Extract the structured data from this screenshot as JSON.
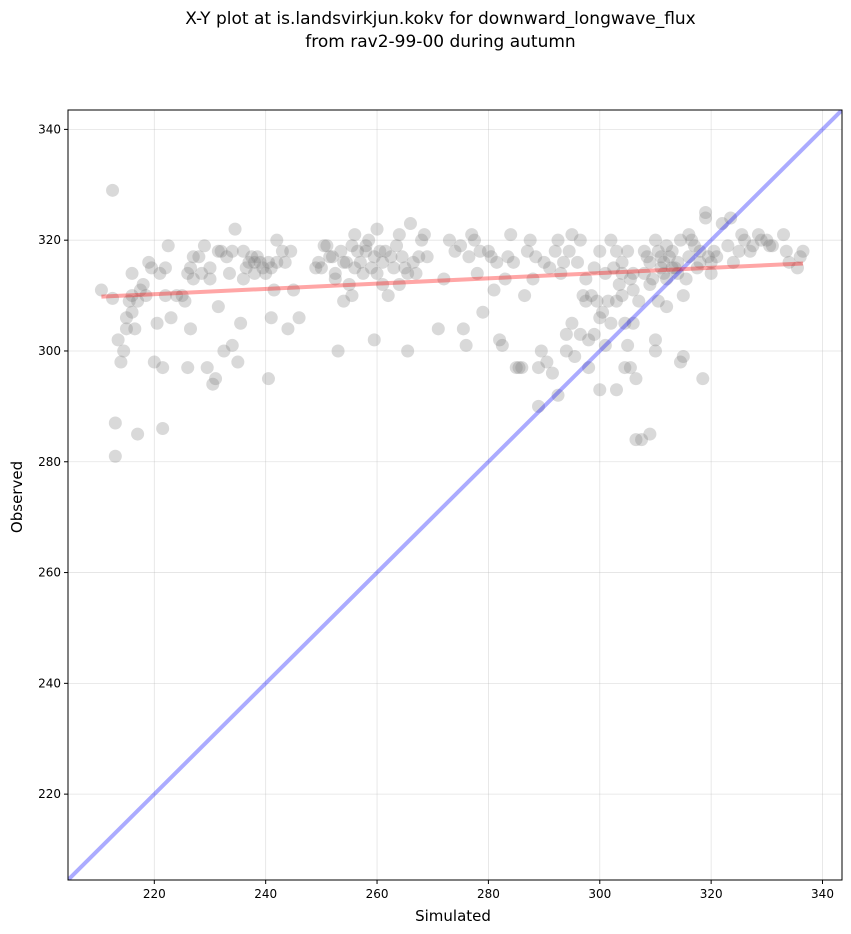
{
  "chart_data": {
    "type": "scatter",
    "title_line1": "X-Y plot at is.landsvirkjun.kokv for downward_longwave_flux",
    "title_line2": "from rav2-99-00 during autumn",
    "xlabel": "Simulated",
    "ylabel": "Observed",
    "xlim": [
      204.5,
      343.5
    ],
    "ylim": [
      204.5,
      343.5
    ],
    "x_ticks": [
      220,
      240,
      260,
      280,
      300,
      320,
      340
    ],
    "y_ticks": [
      220,
      240,
      260,
      280,
      300,
      320,
      340
    ],
    "grid": true,
    "point_color": "#808080",
    "fit_line_color": "#ff0000",
    "identity_line_color": "#0000ff",
    "fit_line": {
      "x": [
        210.5,
        336.5
      ],
      "y": [
        309.8,
        315.8
      ]
    },
    "identity_line": {
      "x": [
        204.5,
        343.5
      ],
      "y": [
        204.5,
        343.5
      ]
    },
    "points": [
      [
        210.5,
        311
      ],
      [
        212.5,
        329
      ],
      [
        213,
        287
      ],
      [
        213,
        281
      ],
      [
        212.5,
        309.5
      ],
      [
        213.5,
        302
      ],
      [
        214,
        298
      ],
      [
        214.5,
        300
      ],
      [
        215,
        306
      ],
      [
        215,
        304
      ],
      [
        215.5,
        309
      ],
      [
        216,
        314
      ],
      [
        216,
        310
      ],
      [
        216,
        307
      ],
      [
        216.5,
        304
      ],
      [
        217,
        309
      ],
      [
        217,
        285
      ],
      [
        217.5,
        311
      ],
      [
        218,
        312
      ],
      [
        218.5,
        310
      ],
      [
        219,
        316
      ],
      [
        219.5,
        315
      ],
      [
        220,
        298
      ],
      [
        220.5,
        305
      ],
      [
        221,
        314
      ],
      [
        221.5,
        297
      ],
      [
        221.5,
        286
      ],
      [
        222,
        310
      ],
      [
        222,
        315
      ],
      [
        222.5,
        319
      ],
      [
        223,
        306
      ],
      [
        224,
        310
      ],
      [
        225,
        310
      ],
      [
        225.5,
        309
      ],
      [
        226,
        314
      ],
      [
        226,
        297
      ],
      [
        226.5,
        315
      ],
      [
        227,
        317
      ],
      [
        227,
        313
      ],
      [
        226.5,
        304
      ],
      [
        228,
        317
      ],
      [
        228.5,
        314
      ],
      [
        229,
        319
      ],
      [
        229.5,
        297
      ],
      [
        230,
        313
      ],
      [
        230,
        315
      ],
      [
        230.5,
        294
      ],
      [
        231,
        295
      ],
      [
        231.5,
        318
      ],
      [
        231.5,
        308
      ],
      [
        232,
        318
      ],
      [
        232.5,
        300
      ],
      [
        233,
        317
      ],
      [
        233.5,
        314
      ],
      [
        234,
        301
      ],
      [
        234,
        318
      ],
      [
        234.5,
        322
      ],
      [
        235,
        298
      ],
      [
        235.5,
        305
      ],
      [
        236,
        313
      ],
      [
        236,
        318
      ],
      [
        236.5,
        315
      ],
      [
        237,
        316
      ],
      [
        237.5,
        317
      ],
      [
        238,
        316
      ],
      [
        238,
        314
      ],
      [
        238.5,
        317
      ],
      [
        239,
        316
      ],
      [
        239.5,
        315
      ],
      [
        240,
        314
      ],
      [
        240.5,
        295
      ],
      [
        240.5,
        316
      ],
      [
        241,
        315
      ],
      [
        241,
        306
      ],
      [
        241.5,
        311
      ],
      [
        242,
        320
      ],
      [
        242,
        316
      ],
      [
        243,
        318
      ],
      [
        243.5,
        316
      ],
      [
        244,
        304
      ],
      [
        244.5,
        318
      ],
      [
        245,
        311
      ],
      [
        246,
        306
      ],
      [
        249,
        315
      ],
      [
        249.5,
        316
      ],
      [
        250,
        315
      ],
      [
        250.5,
        319
      ],
      [
        251,
        319
      ],
      [
        251.5,
        317
      ],
      [
        252,
        317
      ],
      [
        252.5,
        314
      ],
      [
        252.5,
        313
      ],
      [
        253,
        300
      ],
      [
        253.5,
        318
      ],
      [
        254,
        309
      ],
      [
        254,
        316
      ],
      [
        254.5,
        316
      ],
      [
        255,
        312
      ],
      [
        255.5,
        310
      ],
      [
        255.5,
        319
      ],
      [
        256,
        321
      ],
      [
        256,
        315
      ],
      [
        256.5,
        318
      ],
      [
        257,
        316
      ],
      [
        257.5,
        314
      ],
      [
        258,
        319
      ],
      [
        258,
        318
      ],
      [
        258.5,
        320
      ],
      [
        259,
        315
      ],
      [
        259.5,
        317
      ],
      [
        259.5,
        302
      ],
      [
        260,
        322
      ],
      [
        260,
        314
      ],
      [
        260.5,
        318
      ],
      [
        261,
        312
      ],
      [
        261,
        316
      ],
      [
        261.5,
        318
      ],
      [
        262,
        310
      ],
      [
        262.5,
        317
      ],
      [
        263,
        315
      ],
      [
        263.5,
        319
      ],
      [
        264,
        312
      ],
      [
        264,
        321
      ],
      [
        264.5,
        317
      ],
      [
        265,
        315
      ],
      [
        265.5,
        314
      ],
      [
        265.5,
        300
      ],
      [
        266,
        323
      ],
      [
        266.5,
        316
      ],
      [
        267,
        314
      ],
      [
        267.5,
        317
      ],
      [
        268,
        320
      ],
      [
        268.5,
        321
      ],
      [
        269,
        317
      ],
      [
        271,
        304
      ],
      [
        272,
        313
      ],
      [
        273,
        320
      ],
      [
        274,
        318
      ],
      [
        275,
        319
      ],
      [
        275.5,
        304
      ],
      [
        276,
        301
      ],
      [
        276.5,
        317
      ],
      [
        277,
        321
      ],
      [
        277.5,
        320
      ],
      [
        278,
        314
      ],
      [
        278.5,
        318
      ],
      [
        279,
        307
      ],
      [
        280,
        318
      ],
      [
        280.5,
        317
      ],
      [
        281,
        311
      ],
      [
        281.5,
        316
      ],
      [
        282,
        302
      ],
      [
        282.5,
        301
      ],
      [
        283,
        313
      ],
      [
        283.5,
        317
      ],
      [
        284,
        321
      ],
      [
        284.5,
        316
      ],
      [
        285,
        297
      ],
      [
        285.5,
        297
      ],
      [
        286,
        297
      ],
      [
        286.5,
        310
      ],
      [
        287,
        318
      ],
      [
        287.5,
        320
      ],
      [
        288,
        313
      ],
      [
        288.5,
        317
      ],
      [
        289,
        297
      ],
      [
        289,
        290
      ],
      [
        289.5,
        300
      ],
      [
        290,
        316
      ],
      [
        290.5,
        298
      ],
      [
        291,
        315
      ],
      [
        291.5,
        296
      ],
      [
        292,
        318
      ],
      [
        292.5,
        320
      ],
      [
        292.5,
        292
      ],
      [
        293,
        314
      ],
      [
        293.5,
        316
      ],
      [
        294,
        300
      ],
      [
        294,
        303
      ],
      [
        294.5,
        318
      ],
      [
        295,
        305
      ],
      [
        295,
        321
      ],
      [
        295.5,
        299
      ],
      [
        296,
        316
      ],
      [
        296.5,
        320
      ],
      [
        296.5,
        303
      ],
      [
        297,
        310
      ],
      [
        297.5,
        313
      ],
      [
        297.5,
        309
      ],
      [
        298,
        297
      ],
      [
        298,
        302
      ],
      [
        298.5,
        310
      ],
      [
        299,
        315
      ],
      [
        299,
        303
      ],
      [
        299.5,
        309
      ],
      [
        300,
        318
      ],
      [
        300,
        306
      ],
      [
        300,
        293
      ],
      [
        300.5,
        307
      ],
      [
        301,
        314
      ],
      [
        301,
        301
      ],
      [
        301.5,
        309
      ],
      [
        302,
        305
      ],
      [
        302,
        320
      ],
      [
        302.5,
        315
      ],
      [
        303,
        318
      ],
      [
        303,
        293
      ],
      [
        303.5,
        312
      ],
      [
        304,
        316
      ],
      [
        304,
        310
      ],
      [
        304.5,
        305
      ],
      [
        304.5,
        297
      ],
      [
        305,
        301
      ],
      [
        305,
        318
      ],
      [
        305.5,
        297
      ],
      [
        305.5,
        313
      ],
      [
        306,
        311
      ],
      [
        306,
        305
      ],
      [
        306.5,
        295
      ],
      [
        306.5,
        284
      ],
      [
        307,
        309
      ],
      [
        307.5,
        284
      ],
      [
        308,
        314
      ],
      [
        308.5,
        317
      ],
      [
        309,
        316
      ],
      [
        309,
        285
      ],
      [
        309.5,
        313
      ],
      [
        310,
        320
      ],
      [
        310,
        302
      ],
      [
        310,
        300
      ],
      [
        310.5,
        318
      ],
      [
        310.5,
        309
      ],
      [
        311,
        317
      ],
      [
        311.5,
        316
      ],
      [
        311.5,
        314
      ],
      [
        312,
        308
      ],
      [
        312,
        319
      ],
      [
        312.5,
        317
      ],
      [
        313,
        318
      ],
      [
        313.5,
        315
      ],
      [
        314,
        316
      ],
      [
        314.5,
        320
      ],
      [
        314.5,
        298
      ],
      [
        315,
        310
      ],
      [
        315,
        299
      ],
      [
        315.5,
        313
      ],
      [
        316,
        317
      ],
      [
        316,
        321
      ],
      [
        316.5,
        320
      ],
      [
        317,
        319
      ],
      [
        317.5,
        315
      ],
      [
        318,
        318
      ],
      [
        318,
        316
      ],
      [
        318.5,
        295
      ],
      [
        319,
        325
      ],
      [
        319,
        324
      ],
      [
        319.5,
        317
      ],
      [
        320,
        316
      ],
      [
        320,
        314
      ],
      [
        320.5,
        318
      ],
      [
        321,
        317
      ],
      [
        322,
        323
      ],
      [
        323,
        319
      ],
      [
        323.5,
        324
      ],
      [
        324,
        316
      ],
      [
        325,
        318
      ],
      [
        325.5,
        321
      ],
      [
        326,
        320
      ],
      [
        327,
        318
      ],
      [
        327.5,
        319
      ],
      [
        328.5,
        321
      ],
      [
        329,
        320
      ],
      [
        330,
        320
      ],
      [
        330.5,
        319
      ],
      [
        331,
        319
      ],
      [
        333,
        321
      ],
      [
        333.5,
        318
      ],
      [
        334,
        316
      ],
      [
        335.5,
        315
      ],
      [
        336,
        317
      ],
      [
        336.5,
        318
      ],
      [
        313,
        315
      ],
      [
        314,
        314
      ],
      [
        312,
        313
      ],
      [
        311,
        315
      ],
      [
        309,
        312
      ],
      [
        308,
        318
      ],
      [
        306,
        314
      ],
      [
        304,
        314
      ],
      [
        303,
        309
      ]
    ]
  }
}
